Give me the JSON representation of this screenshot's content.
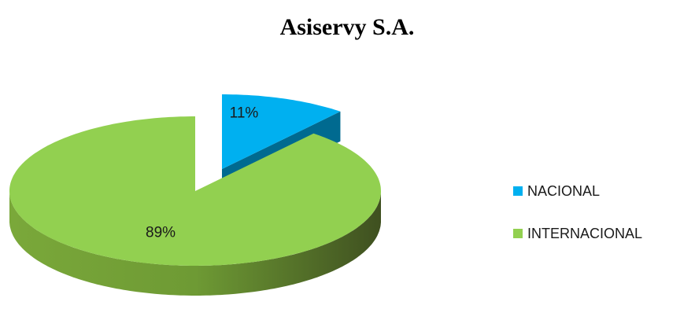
{
  "chart_data": {
    "type": "pie",
    "title": "Asiservy S.A.",
    "categories": [
      "NACIONAL",
      "INTERNACIONAL"
    ],
    "values": [
      11,
      89
    ],
    "value_labels": [
      "11%",
      "89%"
    ],
    "colors": [
      "#00b0f0",
      "#92d050"
    ],
    "legend": "right"
  }
}
